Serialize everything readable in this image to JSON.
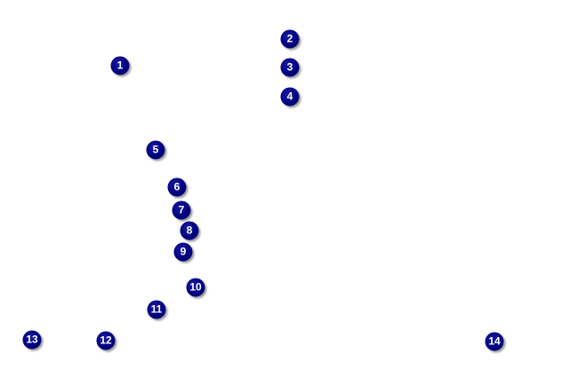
{
  "markers": [
    {
      "label": "1"
    },
    {
      "label": "2"
    },
    {
      "label": "3"
    },
    {
      "label": "4"
    },
    {
      "label": "5"
    },
    {
      "label": "6"
    },
    {
      "label": "7"
    },
    {
      "label": "8"
    },
    {
      "label": "9"
    },
    {
      "label": "10"
    },
    {
      "label": "11"
    },
    {
      "label": "12"
    },
    {
      "label": "13"
    },
    {
      "label": "14"
    }
  ],
  "colors": {
    "marker": "#000080",
    "marker_text": "#ffffff",
    "shadow": "#999999"
  }
}
